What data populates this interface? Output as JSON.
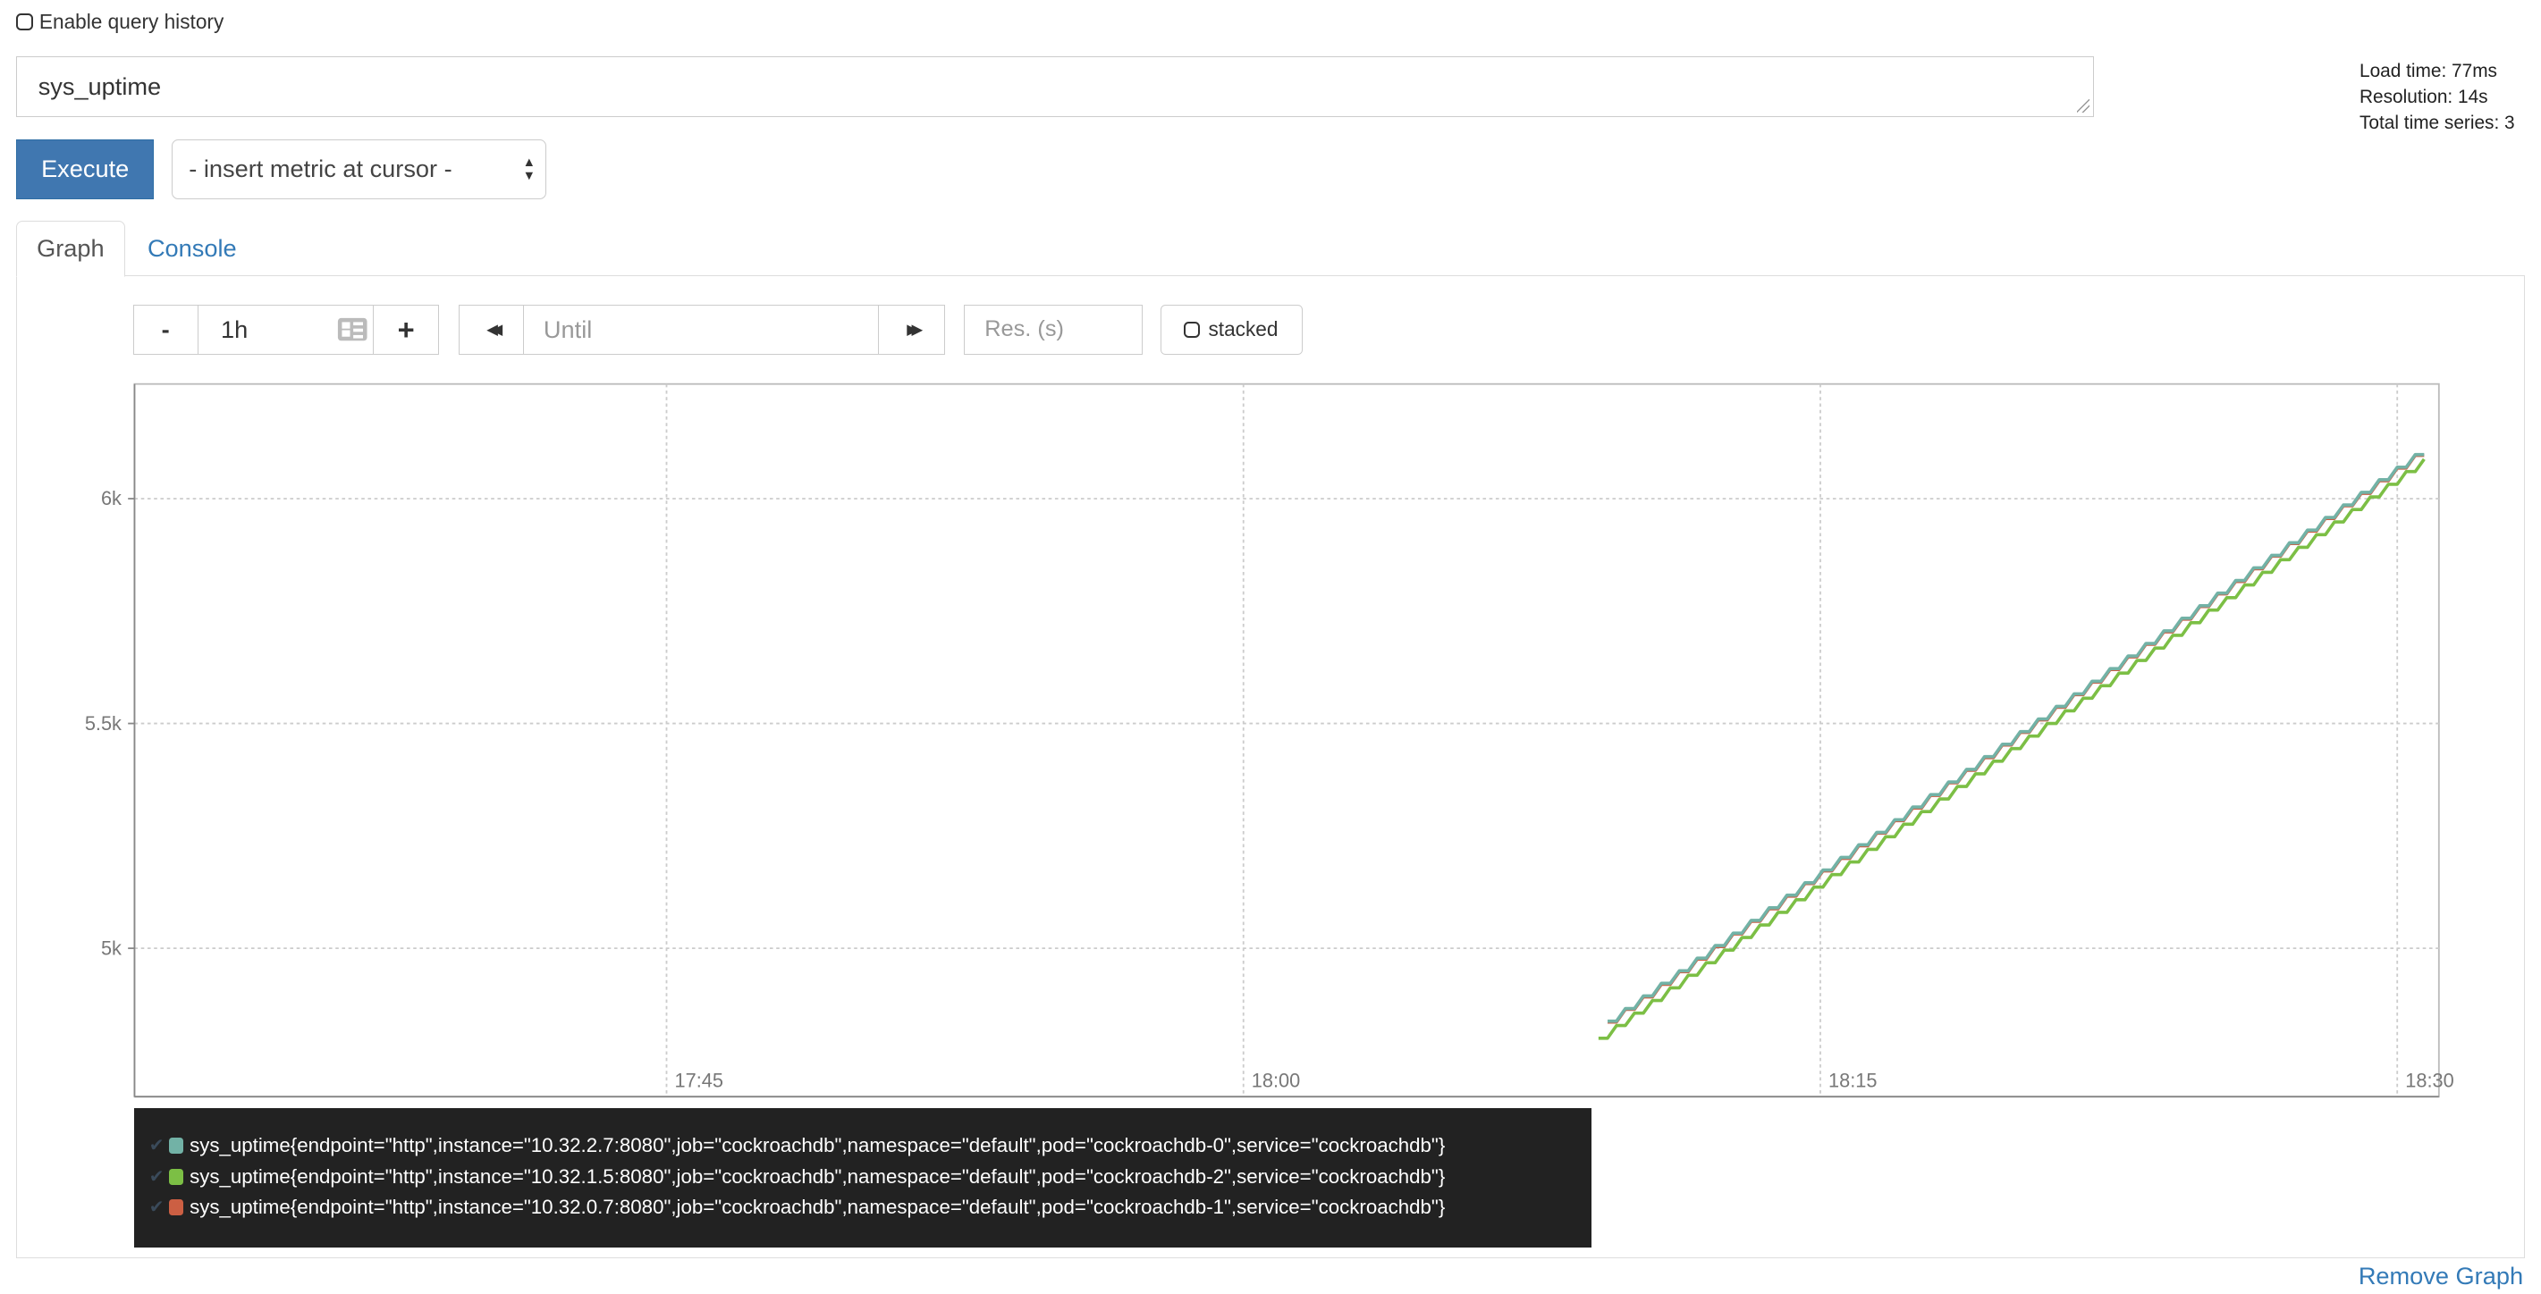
{
  "history": {
    "label": "Enable query history",
    "checked": false
  },
  "query": {
    "value": "sys_uptime"
  },
  "stats": {
    "load_time": "Load time: 77ms",
    "resolution": "Resolution: 14s",
    "total_series": "Total time series: 3"
  },
  "execute_label": "Execute",
  "metric_select": {
    "selected": "- insert metric at cursor -"
  },
  "tabs": [
    {
      "label": "Graph",
      "active": true
    },
    {
      "label": "Console",
      "active": false
    }
  ],
  "controls": {
    "minus": "-",
    "range": "1h",
    "plus": "+",
    "back": "◀◀",
    "until_placeholder": "Until",
    "forward": "▶▶",
    "res_placeholder": "Res. (s)",
    "stacked_label": "stacked"
  },
  "chart_data": {
    "type": "line",
    "interpolation": "linear",
    "grid": true,
    "xlim": [
      "17:31:10",
      "18:31:05"
    ],
    "ylim": [
      4670,
      6255
    ],
    "xticks": [
      "17:45",
      "18:00",
      "18:15",
      "18:30"
    ],
    "yticks": [
      {
        "value": 5000,
        "label": "5k"
      },
      {
        "value": 5500,
        "label": "5.5k"
      },
      {
        "value": 6000,
        "label": "6k"
      }
    ],
    "x_start": "18:09:14",
    "x_step_seconds": 14,
    "series": [
      {
        "name": "sys_uptime{endpoint=\"http\",instance=\"10.32.2.7:8080\",job=\"cockroachdb\",namespace=\"default\",pod=\"cockroachdb-0\",service=\"cockroachdb\"}",
        "color": "#72b2a6",
        "values": [
          null,
          4838,
          4838,
          4866,
          4866,
          4894,
          4894,
          4922,
          4922,
          4950,
          4950,
          4978,
          4978,
          5006,
          5006,
          5034,
          5034,
          5062,
          5062,
          5090,
          5090,
          5118,
          5118,
          5146,
          5146,
          5174,
          5174,
          5202,
          5202,
          5230,
          5230,
          5258,
          5258,
          5286,
          5286,
          5314,
          5314,
          5342,
          5342,
          5370,
          5370,
          5398,
          5398,
          5426,
          5426,
          5454,
          5454,
          5482,
          5482,
          5510,
          5510,
          5538,
          5538,
          5566,
          5566,
          5594,
          5594,
          5622,
          5622,
          5650,
          5650,
          5678,
          5678,
          5706,
          5706,
          5734,
          5734,
          5762,
          5762,
          5790,
          5790,
          5818,
          5818,
          5846,
          5846,
          5874,
          5874,
          5902,
          5902,
          5930,
          5930,
          5958,
          5958,
          5986,
          5986,
          6014,
          6014,
          6042,
          6042,
          6070,
          6070,
          6098,
          6098
        ]
      },
      {
        "name": "sys_uptime{endpoint=\"http\",instance=\"10.32.1.5:8080\",job=\"cockroachdb\",namespace=\"default\",pod=\"cockroachdb-2\",service=\"cockroachdb\"}",
        "color": "#7cbf45",
        "values": [
          4800,
          4800,
          4828,
          4828,
          4856,
          4856,
          4884,
          4884,
          4912,
          4912,
          4940,
          4940,
          4968,
          4968,
          4996,
          4996,
          5024,
          5024,
          5052,
          5052,
          5080,
          5080,
          5108,
          5108,
          5136,
          5136,
          5164,
          5164,
          5192,
          5192,
          5220,
          5220,
          5248,
          5248,
          5276,
          5276,
          5304,
          5304,
          5332,
          5332,
          5360,
          5360,
          5388,
          5388,
          5416,
          5416,
          5444,
          5444,
          5472,
          5472,
          5500,
          5500,
          5528,
          5528,
          5556,
          5556,
          5584,
          5584,
          5612,
          5612,
          5640,
          5640,
          5668,
          5668,
          5696,
          5696,
          5724,
          5724,
          5752,
          5752,
          5780,
          5780,
          5808,
          5808,
          5836,
          5836,
          5864,
          5864,
          5892,
          5892,
          5920,
          5920,
          5948,
          5948,
          5976,
          5976,
          6004,
          6004,
          6032,
          6032,
          6060,
          6060,
          6088
        ]
      },
      {
        "name": "sys_uptime{endpoint=\"http\",instance=\"10.32.0.7:8080\",job=\"cockroachdb\",namespace=\"default\",pod=\"cockroachdb-1\",service=\"cockroachdb\"}",
        "color": "#cc5f43",
        "values": [
          null,
          4836,
          4836,
          4864,
          4864,
          4892,
          4892,
          4920,
          4920,
          4948,
          4948,
          4976,
          4976,
          5004,
          5004,
          5032,
          5032,
          5060,
          5060,
          5088,
          5088,
          5116,
          5116,
          5144,
          5144,
          5172,
          5172,
          5200,
          5200,
          5228,
          5228,
          5256,
          5256,
          5284,
          5284,
          5312,
          5312,
          5340,
          5340,
          5368,
          5368,
          5396,
          5396,
          5424,
          5424,
          5452,
          5452,
          5480,
          5480,
          5508,
          5508,
          5536,
          5536,
          5564,
          5564,
          5592,
          5592,
          5620,
          5620,
          5648,
          5648,
          5676,
          5676,
          5704,
          5704,
          5732,
          5732,
          5760,
          5760,
          5788,
          5788,
          5816,
          5816,
          5844,
          5844,
          5872,
          5872,
          5900,
          5900,
          5928,
          5928,
          5956,
          5956,
          5984,
          5984,
          6012,
          6012,
          6040,
          6040,
          6068,
          6068,
          6096,
          6096
        ]
      }
    ],
    "legend_position": "bottom-left"
  },
  "legend": {
    "items": [
      {
        "label": "sys_uptime{endpoint=\"http\",instance=\"10.32.2.7:8080\",job=\"cockroachdb\",namespace=\"default\",pod=\"cockroachdb-0\",service=\"cockroachdb\"}",
        "color": "#72b2a6"
      },
      {
        "label": "sys_uptime{endpoint=\"http\",instance=\"10.32.1.5:8080\",job=\"cockroachdb\",namespace=\"default\",pod=\"cockroachdb-2\",service=\"cockroachdb\"}",
        "color": "#7cbf45"
      },
      {
        "label": "sys_uptime{endpoint=\"http\",instance=\"10.32.0.7:8080\",job=\"cockroachdb\",namespace=\"default\",pod=\"cockroachdb-1\",service=\"cockroachdb\"}",
        "color": "#cc5f43"
      }
    ],
    "check": "✔"
  },
  "remove_graph": "Remove Graph"
}
